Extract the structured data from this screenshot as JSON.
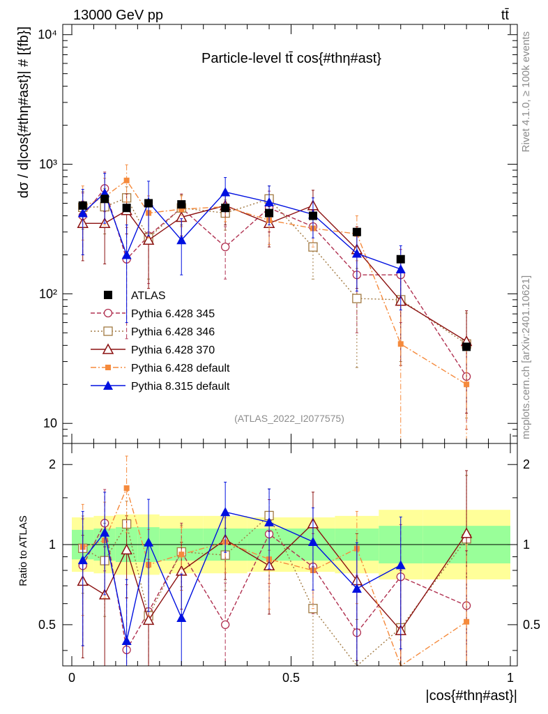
{
  "header": {
    "left": "13000 GeV pp",
    "right": "tt̄"
  },
  "side_labels": {
    "rivet": "Rivet 4.1.0, ≥ 100k events",
    "mcplots": "mcplots.cern.ch [arXiv:2401.10621]"
  },
  "chart_data": {
    "type": "line",
    "title": "Particle-level tt̄ cos{#thη#ast}",
    "analysis_tag": "(ATLAS_2022_I2077575)",
    "xlabel": "|cos{#thη#ast}|",
    "ylabel": "dσ / d|cos{#thη#ast}| # [{fb}]",
    "ratio_ylabel": "Ratio to ATLAS",
    "xlim": [
      0,
      1
    ],
    "ylim": [
      7,
      12000
    ],
    "yscale": "log",
    "ratio_ylim": [
      0.35,
      2.4
    ],
    "ratio_yscale": "log",
    "x_ticks": [
      "0",
      "0.5",
      "1"
    ],
    "y_ticks": [
      "10",
      "10²",
      "10³",
      "10⁴"
    ],
    "ratio_ticks": [
      "0.5",
      "1",
      "2"
    ],
    "bins": [
      0,
      0.05,
      0.1,
      0.15,
      0.2,
      0.3,
      0.4,
      0.5,
      0.6,
      0.7,
      0.8,
      1.0
    ],
    "x": [
      0.025,
      0.075,
      0.125,
      0.175,
      0.25,
      0.35,
      0.45,
      0.55,
      0.65,
      0.75,
      0.9
    ],
    "band_inner": [
      0.88,
      0.87,
      0.86,
      0.86,
      0.87,
      0.87,
      0.87,
      0.87,
      0.87,
      0.85,
      0.85
    ],
    "band_outer": [
      0.79,
      0.78,
      0.77,
      0.77,
      0.78,
      0.78,
      0.79,
      0.79,
      0.78,
      0.74,
      0.74
    ],
    "series": [
      {
        "name": "ATLAS",
        "color": "#000000",
        "marker": "square-filled",
        "dash": "",
        "values": [
          480,
          540,
          460,
          500,
          490,
          460,
          420,
          400,
          300,
          185,
          39
        ],
        "errors": [
          0,
          0,
          0,
          0,
          0,
          0,
          0,
          0,
          0,
          0,
          0
        ]
      },
      {
        "name": "Pythia 6.428 345",
        "color": "#b03050",
        "marker": "circle-open",
        "dash": "6,3",
        "values": [
          400,
          650,
          185,
          280,
          460,
          230,
          460,
          330,
          140,
          140,
          23
        ],
        "errors": [
          200,
          220,
          140,
          160,
          130,
          100,
          160,
          110,
          90,
          80,
          14
        ]
      },
      {
        "name": "Pythia 6.428 346",
        "color": "#a07840",
        "marker": "square-open",
        "dash": "2,3",
        "values": [
          465,
          470,
          550,
          270,
          460,
          420,
          540,
          230,
          92,
          90,
          41
        ],
        "errors": [
          150,
          180,
          120,
          140,
          120,
          110,
          140,
          100,
          65,
          60,
          30
        ]
      },
      {
        "name": "Pythia 6.428 370",
        "color": "#8b1010",
        "marker": "triangle-open",
        "dash": "",
        "values": [
          350,
          350,
          440,
          260,
          390,
          480,
          350,
          480,
          220,
          88,
          43
        ],
        "errors": [
          170,
          180,
          150,
          150,
          110,
          140,
          120,
          150,
          110,
          60,
          31
        ]
      },
      {
        "name": "Pythia 6.428 default",
        "color": "#f58a3c",
        "marker": "square-filled-small",
        "dash": "8,3,2,3",
        "values": [
          470,
          560,
          750,
          420,
          450,
          470,
          370,
          320,
          290,
          41,
          20
        ],
        "errors": [
          210,
          220,
          240,
          150,
          120,
          110,
          130,
          90,
          110,
          40,
          19
        ]
      },
      {
        "name": "Pythia 8.315 default",
        "color": "#0010e0",
        "marker": "triangle-filled",
        "dash": "",
        "values": [
          420,
          600,
          200,
          510,
          260,
          610,
          510,
          410,
          205,
          155,
          0
        ],
        "errors": [
          220,
          250,
          140,
          230,
          120,
          180,
          170,
          140,
          100,
          80,
          0
        ]
      }
    ]
  }
}
